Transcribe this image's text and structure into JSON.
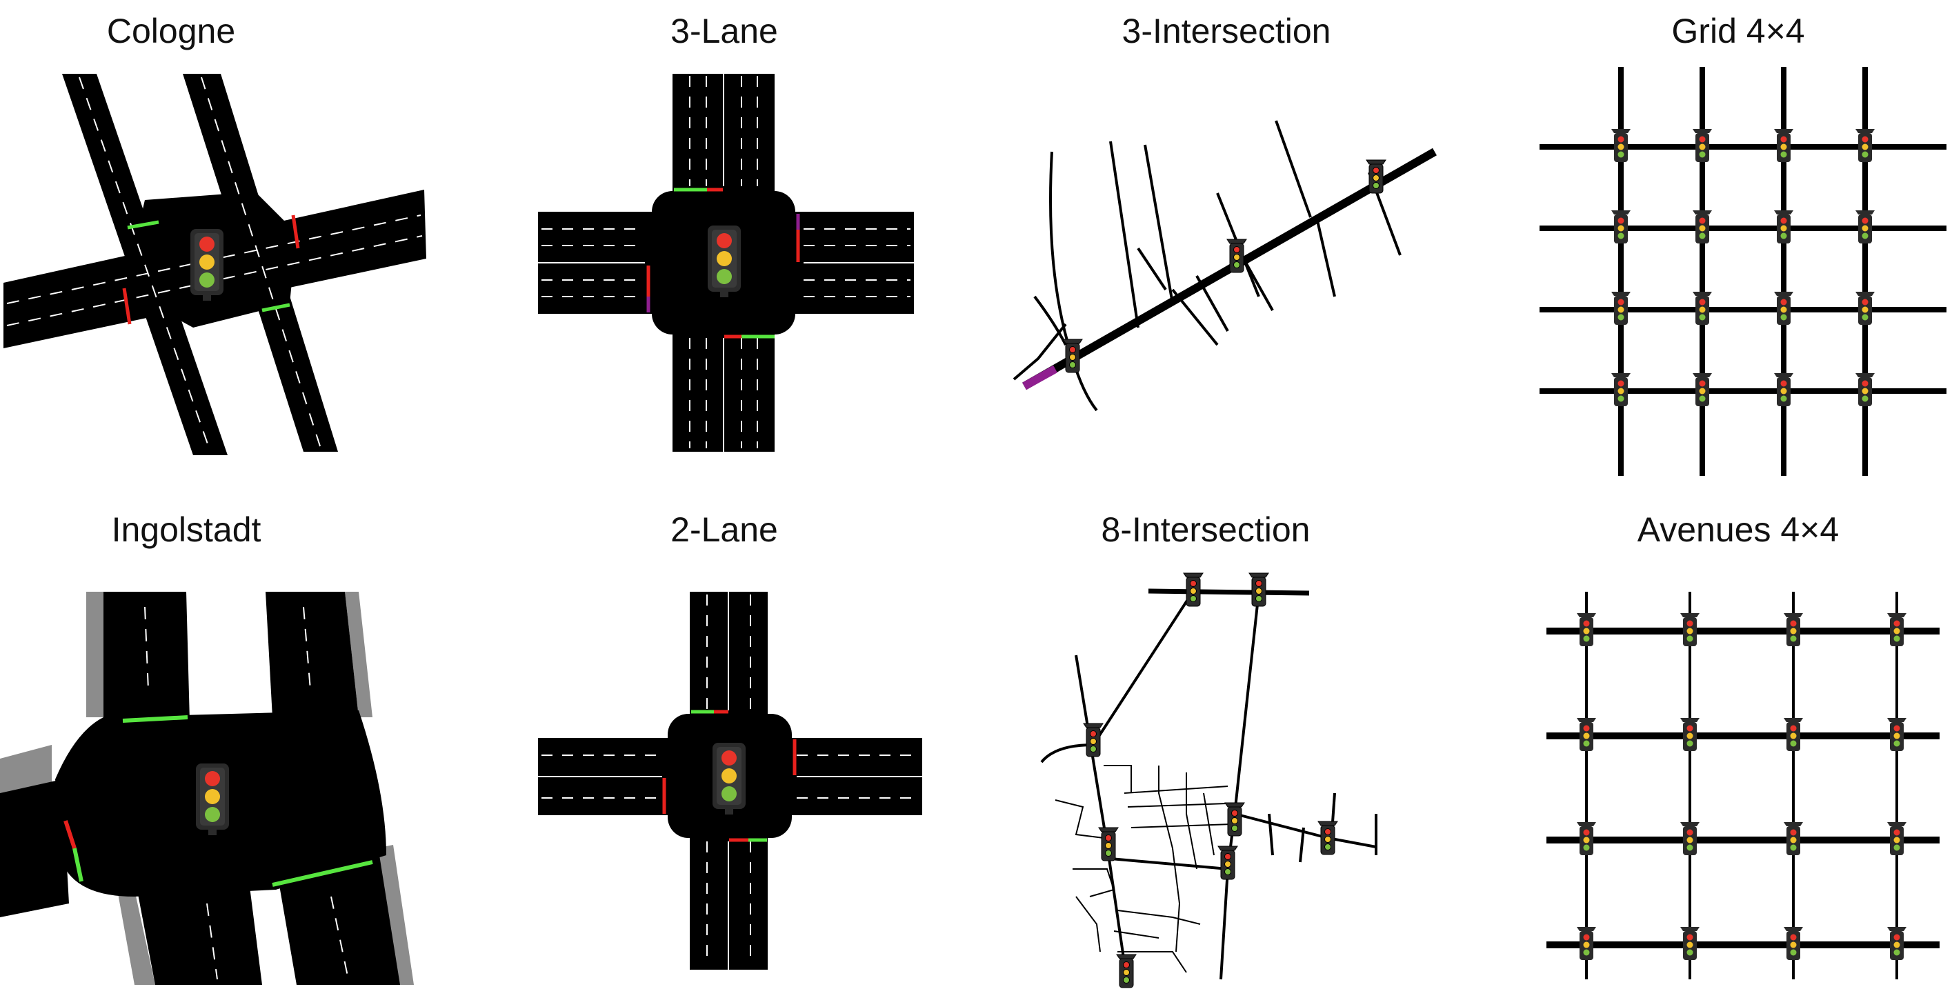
{
  "colors": {
    "road": "#000000",
    "lane_mark": "#ffffff",
    "red": "#e8211d",
    "green": "#57e53f",
    "purple": "#8f1f8f",
    "sidewalk": "#8c8c8c",
    "light_red": "#e8342a",
    "light_yellow": "#f2c02a",
    "light_green": "#7cc040",
    "light_housing": "#2b2b2b"
  },
  "panels": [
    {
      "id": "cologne",
      "title": "Cologne"
    },
    {
      "id": "three-lane",
      "title": "3-Lane"
    },
    {
      "id": "three-intersection",
      "title": "3-Intersection"
    },
    {
      "id": "grid",
      "title": "Grid 4×4"
    },
    {
      "id": "ingolstadt",
      "title": "Ingolstadt"
    },
    {
      "id": "two-lane",
      "title": "2-Lane"
    },
    {
      "id": "eight-intersection",
      "title": "8-Intersection"
    },
    {
      "id": "avenues",
      "title": "Avenues 4×4"
    }
  ]
}
